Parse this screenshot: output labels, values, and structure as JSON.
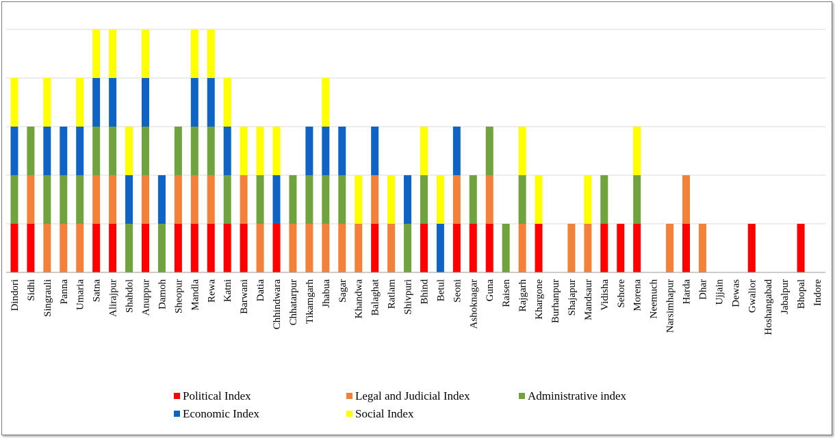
{
  "chart_data": {
    "type": "bar",
    "stacked": true,
    "title": "",
    "xlabel": "",
    "ylabel": "",
    "ylim": [
      0,
      5
    ],
    "grid": true,
    "legend_position": "bottom",
    "categories": [
      "Dindori",
      "Sidhi",
      "Singrauli",
      "Panna",
      "Umaria",
      "Satna",
      "Alirajpur",
      "Shahdol",
      "Anuppur",
      "Damoh",
      "Sheopur",
      "Mandla",
      "Rewa",
      "Katni",
      "Barwani",
      "Datia",
      "Chhindwara",
      "Chhatarpur",
      "Tikamgarh",
      "Jhabua",
      "Sagar",
      "Khandwa",
      "Balaghat",
      "Ratlam",
      "Shivpuri",
      "Bhind",
      "Betul",
      "Seoni",
      "Ashoknagar",
      "Guna",
      "Raisen",
      "Rajgarh",
      "Khargone",
      "Burhanpur",
      "Shajapur",
      "Mandsaur",
      "Vidisha",
      "Sehore",
      "Morena",
      "Neemuch",
      "Narsimhapur",
      "Harda",
      "Dhar",
      "Ujjain",
      "Dewas",
      "Gwalior",
      "Hoshangabad",
      "Jabalpur",
      "Bhopal",
      "Indore"
    ],
    "series": [
      {
        "name": "Political Index",
        "color": "#ff0000",
        "values": [
          1,
          1,
          0,
          0,
          0,
          1,
          1,
          0,
          1,
          0,
          1,
          1,
          1,
          1,
          1,
          0,
          1,
          0,
          0,
          0,
          0,
          0,
          1,
          0,
          0,
          1,
          0,
          1,
          1,
          1,
          0,
          0,
          1,
          0,
          0,
          0,
          1,
          1,
          1,
          0,
          0,
          1,
          0,
          0,
          0,
          1,
          0,
          0,
          1,
          0
        ]
      },
      {
        "name": "Legal and Judicial Index",
        "color": "#f4813a",
        "values": [
          0,
          1,
          1,
          1,
          1,
          1,
          1,
          0,
          1,
          0,
          1,
          1,
          1,
          0,
          1,
          1,
          0,
          1,
          1,
          1,
          1,
          1,
          1,
          1,
          0,
          0,
          0,
          1,
          0,
          1,
          0,
          1,
          0,
          0,
          1,
          1,
          0,
          0,
          0,
          0,
          1,
          1,
          1,
          0,
          0,
          0,
          0,
          0,
          0,
          0
        ]
      },
      {
        "name": "Administrative index",
        "color": "#70a33e",
        "values": [
          1,
          1,
          1,
          1,
          1,
          1,
          1,
          1,
          1,
          1,
          1,
          1,
          1,
          1,
          0,
          1,
          0,
          1,
          1,
          1,
          1,
          0,
          0,
          0,
          1,
          1,
          0,
          0,
          1,
          1,
          1,
          1,
          0,
          0,
          0,
          0,
          1,
          0,
          1,
          0,
          0,
          0,
          0,
          0,
          0,
          0,
          0,
          0,
          0,
          0
        ]
      },
      {
        "name": "Economic Index",
        "color": "#0e63c4",
        "values": [
          1,
          0,
          1,
          1,
          1,
          1,
          1,
          1,
          1,
          1,
          0,
          1,
          1,
          1,
          0,
          0,
          1,
          0,
          1,
          1,
          1,
          0,
          1,
          0,
          1,
          0,
          1,
          1,
          0,
          0,
          0,
          0,
          0,
          0,
          0,
          0,
          0,
          0,
          0,
          0,
          0,
          0,
          0,
          0,
          0,
          0,
          0,
          0,
          0,
          0
        ]
      },
      {
        "name": "Social Index",
        "color": "#ffff00",
        "values": [
          1,
          0,
          1,
          0,
          1,
          1,
          1,
          1,
          1,
          0,
          0,
          1,
          1,
          1,
          1,
          1,
          1,
          0,
          0,
          1,
          0,
          1,
          0,
          1,
          0,
          1,
          1,
          0,
          0,
          0,
          0,
          1,
          1,
          0,
          0,
          1,
          0,
          0,
          1,
          0,
          0,
          0,
          0,
          0,
          0,
          0,
          0,
          0,
          0,
          0
        ]
      }
    ]
  }
}
